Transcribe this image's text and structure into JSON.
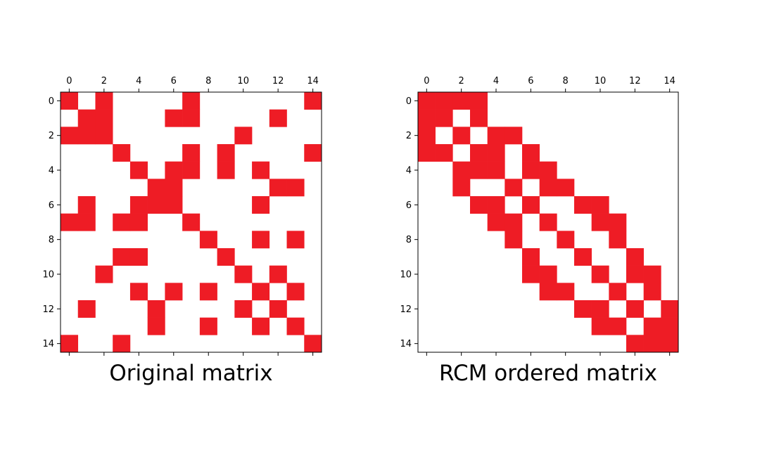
{
  "colors": {
    "filled": "#ee1c25",
    "frame": "#000000",
    "background": "#ffffff"
  },
  "chart_data": [
    {
      "type": "heatmap",
      "title": "Original matrix",
      "size": 15,
      "x_ticks": [
        "0",
        "2",
        "4",
        "6",
        "8",
        "10",
        "12",
        "14"
      ],
      "y_ticks": [
        "0",
        "2",
        "4",
        "6",
        "8",
        "10",
        "12",
        "14"
      ],
      "x_tick_position": "top",
      "grid": false,
      "matrix": [
        [
          1,
          0,
          1,
          0,
          0,
          0,
          0,
          1,
          0,
          0,
          0,
          0,
          0,
          0,
          1
        ],
        [
          0,
          1,
          1,
          0,
          0,
          0,
          1,
          1,
          0,
          0,
          0,
          0,
          1,
          0,
          0
        ],
        [
          1,
          1,
          1,
          0,
          0,
          0,
          0,
          0,
          0,
          0,
          1,
          0,
          0,
          0,
          0
        ],
        [
          0,
          0,
          0,
          1,
          0,
          0,
          0,
          1,
          0,
          1,
          0,
          0,
          0,
          0,
          1
        ],
        [
          0,
          0,
          0,
          0,
          1,
          0,
          1,
          1,
          0,
          1,
          0,
          1,
          0,
          0,
          0
        ],
        [
          0,
          0,
          0,
          0,
          0,
          1,
          1,
          0,
          0,
          0,
          0,
          0,
          1,
          1,
          0
        ],
        [
          0,
          1,
          0,
          0,
          1,
          1,
          1,
          0,
          0,
          0,
          0,
          1,
          0,
          0,
          0
        ],
        [
          1,
          1,
          0,
          1,
          1,
          0,
          0,
          1,
          0,
          0,
          0,
          0,
          0,
          0,
          0
        ],
        [
          0,
          0,
          0,
          0,
          0,
          0,
          0,
          0,
          1,
          0,
          0,
          1,
          0,
          1,
          0
        ],
        [
          0,
          0,
          0,
          1,
          1,
          0,
          0,
          0,
          0,
          1,
          0,
          0,
          0,
          0,
          0
        ],
        [
          0,
          0,
          1,
          0,
          0,
          0,
          0,
          0,
          0,
          0,
          1,
          0,
          1,
          0,
          0
        ],
        [
          0,
          0,
          0,
          0,
          1,
          0,
          1,
          0,
          1,
          0,
          0,
          1,
          0,
          1,
          0
        ],
        [
          0,
          1,
          0,
          0,
          0,
          1,
          0,
          0,
          0,
          0,
          1,
          0,
          1,
          0,
          0
        ],
        [
          0,
          0,
          0,
          0,
          0,
          1,
          0,
          0,
          1,
          0,
          0,
          1,
          0,
          1,
          0
        ],
        [
          1,
          0,
          0,
          1,
          0,
          0,
          0,
          0,
          0,
          0,
          0,
          0,
          0,
          0,
          1
        ]
      ]
    },
    {
      "type": "heatmap",
      "title": "RCM ordered matrix",
      "size": 15,
      "x_ticks": [
        "0",
        "2",
        "4",
        "6",
        "8",
        "10",
        "12",
        "14"
      ],
      "y_ticks": [
        "0",
        "2",
        "4",
        "6",
        "8",
        "10",
        "12",
        "14"
      ],
      "x_tick_position": "top",
      "grid": false,
      "matrix": [
        [
          1,
          1,
          1,
          1,
          0,
          0,
          0,
          0,
          0,
          0,
          0,
          0,
          0,
          0,
          0
        ],
        [
          1,
          1,
          0,
          1,
          0,
          0,
          0,
          0,
          0,
          0,
          0,
          0,
          0,
          0,
          0
        ],
        [
          1,
          0,
          1,
          0,
          1,
          1,
          0,
          0,
          0,
          0,
          0,
          0,
          0,
          0,
          0
        ],
        [
          1,
          1,
          0,
          1,
          1,
          0,
          1,
          0,
          0,
          0,
          0,
          0,
          0,
          0,
          0
        ],
        [
          0,
          0,
          1,
          1,
          1,
          0,
          1,
          1,
          0,
          0,
          0,
          0,
          0,
          0,
          0
        ],
        [
          0,
          0,
          1,
          0,
          0,
          1,
          0,
          1,
          1,
          0,
          0,
          0,
          0,
          0,
          0
        ],
        [
          0,
          0,
          0,
          1,
          1,
          0,
          1,
          0,
          0,
          1,
          1,
          0,
          0,
          0,
          0
        ],
        [
          0,
          0,
          0,
          0,
          1,
          1,
          0,
          1,
          0,
          0,
          1,
          1,
          0,
          0,
          0
        ],
        [
          0,
          0,
          0,
          0,
          0,
          1,
          0,
          0,
          1,
          0,
          0,
          1,
          0,
          0,
          0
        ],
        [
          0,
          0,
          0,
          0,
          0,
          0,
          1,
          0,
          0,
          1,
          0,
          0,
          1,
          0,
          0
        ],
        [
          0,
          0,
          0,
          0,
          0,
          0,
          1,
          1,
          0,
          0,
          1,
          0,
          1,
          1,
          0
        ],
        [
          0,
          0,
          0,
          0,
          0,
          0,
          0,
          1,
          1,
          0,
          0,
          1,
          0,
          1,
          0
        ],
        [
          0,
          0,
          0,
          0,
          0,
          0,
          0,
          0,
          0,
          1,
          1,
          0,
          1,
          0,
          1
        ],
        [
          0,
          0,
          0,
          0,
          0,
          0,
          0,
          0,
          0,
          0,
          1,
          1,
          0,
          1,
          1
        ],
        [
          0,
          0,
          0,
          0,
          0,
          0,
          0,
          0,
          0,
          0,
          0,
          0,
          1,
          1,
          1
        ]
      ]
    }
  ]
}
